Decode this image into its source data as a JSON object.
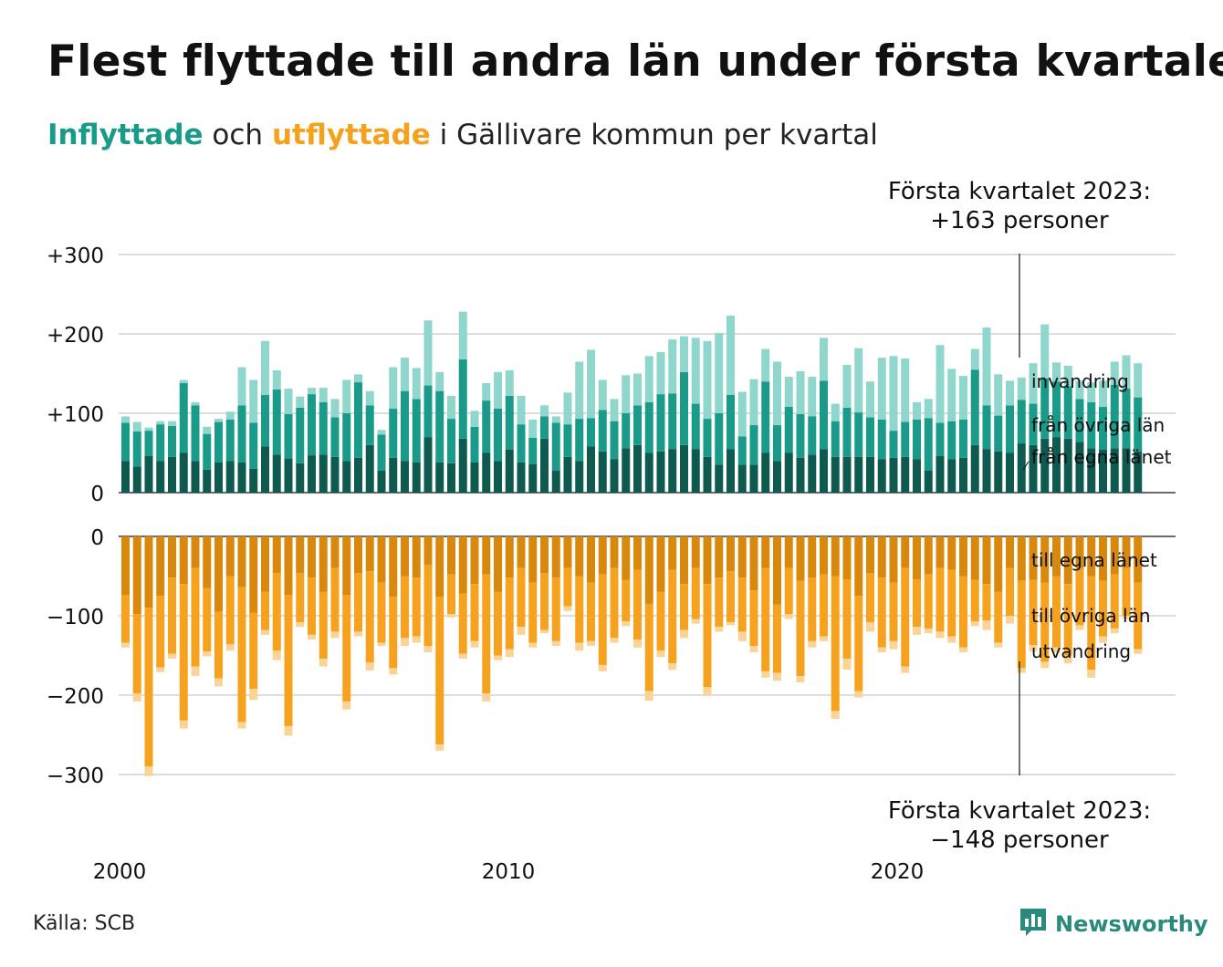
{
  "title": "Flest flyttade till andra län under första kvartalet",
  "subtitle": {
    "in_word": "Inflyttade",
    "and_word": "och",
    "out_word": "utflyttade",
    "rest": "i Gällivare kommun per kvartal"
  },
  "annotations": {
    "top": [
      "Första kvartalet 2023:",
      "+163 personer"
    ],
    "bottom": [
      "Första kvartalet 2023:",
      "−148 personer"
    ]
  },
  "source": "Källa: SCB",
  "logo": {
    "text": "Newsworthy",
    "icon": "newsworthy-logo-icon"
  },
  "colors": {
    "in_egna": "#0e5a4f",
    "in_ovriga": "#1a9a88",
    "in_invandring": "#8fd6cc",
    "out_egna": "#d8890d",
    "out_ovriga": "#f6a21e",
    "out_utvandring": "#f9d496",
    "grid": "#dddddd",
    "axis": "#111111"
  },
  "chart_data": {
    "type": "bar",
    "stacked": true,
    "x_ticks": [
      "2000",
      "2010",
      "2020"
    ],
    "inflow": {
      "ylim": [
        0,
        300
      ],
      "y_ticks": [
        "0",
        "+100",
        "+200",
        "+300"
      ],
      "series_labels": [
        "från egna länet",
        "från övriga län",
        "invandring"
      ],
      "egna": [
        40,
        33,
        46,
        40,
        45,
        50,
        40,
        29,
        38,
        40,
        38,
        30,
        58,
        48,
        43,
        37,
        47,
        48,
        45,
        40,
        44,
        60,
        28,
        44,
        40,
        38,
        70,
        38,
        37,
        68,
        38,
        50,
        40,
        54,
        38,
        36,
        68,
        28,
        45,
        40,
        58,
        52,
        42,
        56,
        60,
        50,
        52,
        55,
        60,
        55,
        45,
        35,
        55,
        35,
        35,
        50,
        40,
        50,
        44,
        48,
        55,
        45,
        45,
        45,
        45,
        42,
        44,
        45,
        42,
        28,
        46,
        42,
        44,
        60,
        55,
        52,
        50,
        62,
        60,
        68,
        70,
        68,
        64,
        56,
        54,
        56,
        56,
        52
      ],
      "ovriga": [
        48,
        44,
        32,
        46,
        39,
        88,
        70,
        45,
        51,
        52,
        72,
        58,
        65,
        82,
        56,
        70,
        77,
        66,
        50,
        60,
        95,
        50,
        45,
        62,
        88,
        80,
        65,
        90,
        56,
        100,
        45,
        66,
        66,
        68,
        48,
        33,
        28,
        60,
        41,
        53,
        36,
        52,
        48,
        44,
        50,
        64,
        72,
        70,
        92,
        57,
        48,
        65,
        68,
        36,
        50,
        90,
        45,
        58,
        55,
        48,
        86,
        45,
        62,
        56,
        50,
        50,
        34,
        44,
        50,
        66,
        42,
        48,
        48,
        95,
        55,
        45,
        60,
        55,
        52,
        76,
        70,
        66,
        54,
        58,
        54,
        80,
        75,
        68
      ],
      "invandring": [
        8,
        12,
        4,
        4,
        6,
        4,
        4,
        9,
        4,
        10,
        48,
        54,
        68,
        24,
        32,
        14,
        8,
        18,
        23,
        42,
        10,
        18,
        6,
        52,
        42,
        39,
        82,
        24,
        29,
        60,
        20,
        22,
        46,
        32,
        36,
        23,
        14,
        8,
        40,
        72,
        86,
        38,
        28,
        48,
        40,
        58,
        53,
        68,
        45,
        83,
        98,
        101,
        100,
        56,
        58,
        41,
        80,
        38,
        54,
        50,
        54,
        22,
        54,
        81,
        45,
        78,
        94,
        80,
        22,
        24,
        98,
        66,
        55,
        26,
        98,
        52,
        31,
        28,
        51,
        68,
        24,
        26,
        23,
        25,
        33,
        29,
        42,
        43
      ]
    },
    "outflow": {
      "ylim": [
        -300,
        0
      ],
      "y_ticks": [
        "0",
        "−100",
        "−200",
        "−300"
      ],
      "series_labels": [
        "till egna länet",
        "till övriga län",
        "utvandring"
      ],
      "egna": [
        74,
        98,
        90,
        75,
        52,
        60,
        40,
        65,
        95,
        50,
        64,
        96,
        70,
        46,
        74,
        46,
        52,
        70,
        40,
        74,
        46,
        44,
        58,
        76,
        50,
        52,
        36,
        76,
        48,
        72,
        60,
        48,
        70,
        52,
        40,
        58,
        46,
        52,
        40,
        50,
        58,
        48,
        40,
        55,
        42,
        85,
        70,
        42,
        60,
        40,
        60,
        52,
        44,
        52,
        68,
        40,
        86,
        40,
        56,
        52,
        48,
        50,
        54,
        75,
        46,
        52,
        58,
        40,
        54,
        48,
        40,
        42,
        50,
        55,
        60,
        70,
        40,
        56,
        55,
        58,
        50,
        60,
        40,
        50,
        56,
        48,
        40,
        58
      ],
      "ovriga": [
        60,
        100,
        200,
        90,
        96,
        172,
        124,
        80,
        84,
        86,
        170,
        96,
        48,
        98,
        165,
        62,
        72,
        84,
        80,
        134,
        74,
        115,
        76,
        90,
        78,
        74,
        102,
        186,
        50,
        76,
        72,
        150,
        80,
        90,
        74,
        76,
        72,
        80,
        48,
        84,
        74,
        114,
        88,
        52,
        88,
        110,
        74,
        118,
        58,
        64,
        130,
        62,
        64,
        68,
        70,
        130,
        86,
        58,
        120,
        80,
        78,
        170,
        100,
        120,
        62,
        88,
        74,
        124,
        60,
        68,
        80,
        84,
        90,
        52,
        46,
        64,
        60,
        110,
        82,
        100,
        90,
        90,
        72,
        118,
        70,
        68,
        60,
        84
      ],
      "utvandring": [
        6,
        10,
        12,
        6,
        6,
        10,
        12,
        6,
        10,
        8,
        8,
        14,
        6,
        12,
        12,
        6,
        6,
        10,
        8,
        10,
        6,
        10,
        4,
        8,
        10,
        8,
        8,
        8,
        4,
        6,
        8,
        10,
        6,
        10,
        10,
        6,
        4,
        6,
        6,
        10,
        6,
        8,
        6,
        6,
        10,
        12,
        8,
        8,
        10,
        6,
        10,
        6,
        4,
        12,
        8,
        8,
        10,
        6,
        8,
        8,
        6,
        10,
        14,
        8,
        12,
        6,
        10,
        8,
        10,
        6,
        8,
        8,
        6,
        6,
        12,
        6,
        10,
        6,
        8,
        8,
        6,
        10,
        6,
        10,
        8,
        6,
        4,
        6
      ]
    }
  }
}
